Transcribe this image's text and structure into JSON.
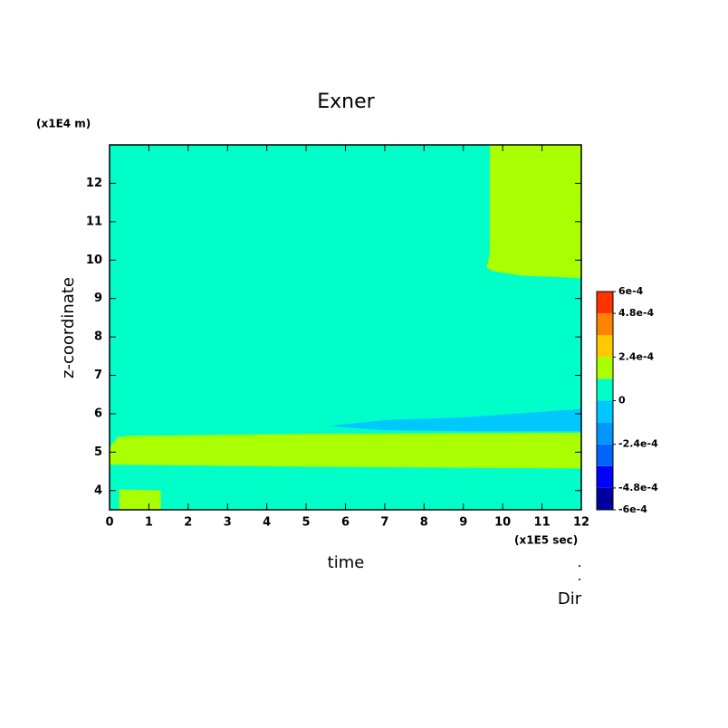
{
  "chart_data": {
    "type": "contour",
    "title": "Exner",
    "y_unit": "(x1E4 m)",
    "x_unit": "(x1E5 sec)",
    "xlabel": "time",
    "ylabel": "z-coordinate",
    "footer": "Dir",
    "xlim": [
      0,
      12
    ],
    "ylim": [
      3.5,
      13
    ],
    "xticks": [
      0,
      1,
      2,
      3,
      4,
      5,
      6,
      7,
      8,
      9,
      10,
      11,
      12
    ],
    "yticks": [
      4,
      5,
      6,
      7,
      8,
      9,
      10,
      11,
      12
    ],
    "levels": [
      -0.0006,
      -0.00048,
      -0.00036,
      -0.00024,
      -0.00012,
      0,
      0.00012,
      0.00024,
      0.00036,
      0.00048,
      0.0006
    ],
    "colors": [
      "#0000a0",
      "#0000ff",
      "#0064ff",
      "#0096ff",
      "#00c8ff",
      "#00ffc8",
      "#aaff00",
      "#ffc800",
      "#ff8200",
      "#ff3200",
      "#ff4646"
    ],
    "colorbar_ticks": [
      {
        "value": 0.0006,
        "label": "6e-4"
      },
      {
        "value": 0.00048,
        "label": "4.8e-4"
      },
      {
        "value": 0.00024,
        "label": "2.4e-4"
      },
      {
        "value": 0,
        "label": "0"
      },
      {
        "value": -0.00024,
        "label": "-2.4e-4"
      },
      {
        "value": -0.00048,
        "label": "-4.8e-4"
      },
      {
        "value": -0.0006,
        "label": "-6e-4"
      }
    ],
    "regions": [
      {
        "bin": 5,
        "points": [
          [
            0,
            3.5
          ],
          [
            12,
            3.5
          ],
          [
            12,
            13
          ],
          [
            0,
            13
          ]
        ]
      },
      {
        "bin": 6,
        "points": [
          [
            0,
            4.68
          ],
          [
            5,
            4.63
          ],
          [
            12,
            4.58
          ],
          [
            12,
            5.5
          ],
          [
            5,
            5.47
          ],
          [
            0.5,
            5.42
          ],
          [
            0.2,
            5.38
          ],
          [
            0,
            5.1
          ]
        ]
      },
      {
        "bin": 6,
        "points": [
          [
            0.25,
            3.5
          ],
          [
            0.25,
            4.02
          ],
          [
            1.3,
            4.0
          ],
          [
            1.3,
            3.5
          ]
        ]
      },
      {
        "bin": 6,
        "points": [
          [
            9.68,
            13
          ],
          [
            12,
            13
          ],
          [
            12,
            9.54
          ],
          [
            10.5,
            9.6
          ],
          [
            9.75,
            9.72
          ],
          [
            9.6,
            9.8
          ],
          [
            9.68,
            10.2
          ]
        ]
      },
      {
        "bin": 4,
        "points": [
          [
            5.6,
            5.68
          ],
          [
            7,
            5.83
          ],
          [
            9,
            5.9
          ],
          [
            12,
            6.12
          ],
          [
            12,
            5.55
          ],
          [
            9,
            5.55
          ],
          [
            7,
            5.58
          ]
        ]
      }
    ]
  }
}
